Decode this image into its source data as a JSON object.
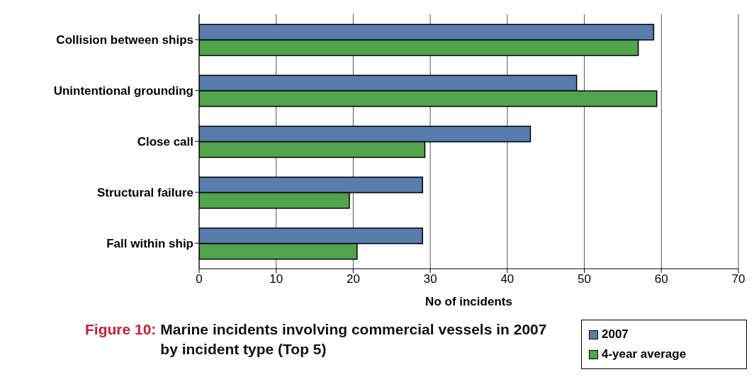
{
  "chart_data": {
    "type": "bar",
    "orientation": "horizontal",
    "title": "Figure 10:",
    "subtitle": "Marine incidents involving commercial vessels in 2007 by incident type (Top 5)",
    "xlabel": "No of incidents",
    "categories": [
      "Collision between ships",
      "Unintentional grounding",
      "Close call",
      "Structural failure",
      "Fall within ship"
    ],
    "series": [
      {
        "name": "2007",
        "color": "#587cac",
        "values": [
          59,
          49,
          43,
          29,
          29
        ]
      },
      {
        "name": "4-year average",
        "color": "#52a44c",
        "values": [
          57,
          59.4,
          29.3,
          19.5,
          20.5
        ]
      }
    ],
    "xlim": [
      0,
      70
    ],
    "xticks": [
      0,
      10,
      20,
      30,
      40,
      50,
      60,
      70
    ],
    "grid": "x",
    "legend": "bottom right"
  }
}
